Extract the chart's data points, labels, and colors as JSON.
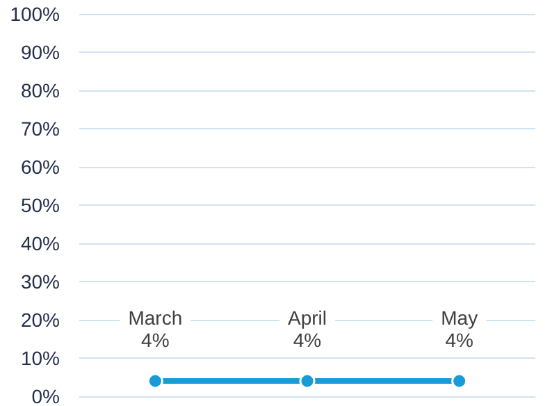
{
  "chart_data": {
    "type": "line",
    "categories": [
      "March",
      "April",
      "May"
    ],
    "series": [
      {
        "color": "#1a9bd7",
        "values": [
          4,
          4,
          4
        ],
        "value_labels": [
          "4%",
          "4%",
          "4%"
        ]
      }
    ],
    "ylim": [
      0,
      100
    ],
    "yticks": [
      {
        "value": 0,
        "label": "0%"
      },
      {
        "value": 10,
        "label": "10%"
      },
      {
        "value": 20,
        "label": "20%"
      },
      {
        "value": 30,
        "label": "30%"
      },
      {
        "value": 40,
        "label": "40%"
      },
      {
        "value": 50,
        "label": "50%"
      },
      {
        "value": 60,
        "label": "60%"
      },
      {
        "value": 70,
        "label": "70%"
      },
      {
        "value": 80,
        "label": "80%"
      },
      {
        "value": 90,
        "label": "90%"
      },
      {
        "value": 100,
        "label": "100%"
      }
    ],
    "grid": "y",
    "marker": "circle",
    "line_style": "solid",
    "tick_labels": "y"
  }
}
